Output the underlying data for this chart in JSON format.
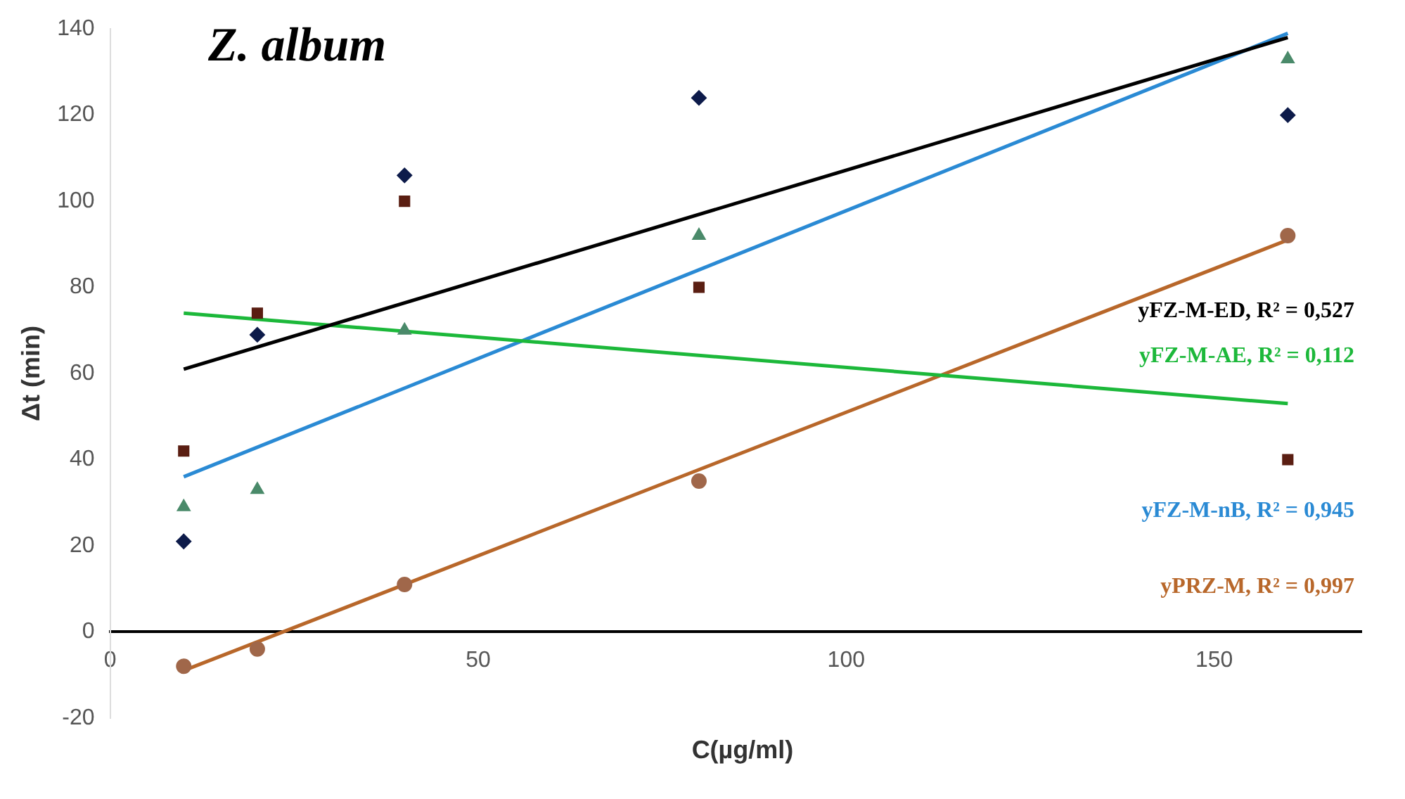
{
  "chart_data": {
    "type": "scatter",
    "title": "Z. album",
    "xlabel": "C(µg/ml)",
    "ylabel": "Δt (min)",
    "xlim": [
      0,
      170
    ],
    "xticks": [
      0,
      50,
      100,
      150
    ],
    "ylim": [
      -20,
      140
    ],
    "yticks": [
      -20,
      0,
      20,
      40,
      60,
      80,
      100,
      120,
      140
    ],
    "grid": false,
    "legend": false,
    "series": [
      {
        "marker": "diamond",
        "color": "#0d1b4a",
        "x": [
          10,
          20,
          40,
          80,
          160
        ],
        "values": [
          21,
          69,
          106,
          124,
          120
        ]
      },
      {
        "marker": "square",
        "color": "#5a1e12",
        "x": [
          10,
          20,
          40,
          80,
          160
        ],
        "values": [
          42,
          74,
          100,
          80,
          40
        ]
      },
      {
        "marker": "triangle",
        "color": "#4a8a6a",
        "x": [
          10,
          20,
          40,
          80,
          160
        ],
        "values": [
          29,
          33,
          70,
          92,
          133
        ]
      },
      {
        "marker": "circle",
        "color": "#a0674a",
        "x": [
          10,
          20,
          40,
          80,
          160
        ],
        "values": [
          -8,
          -4,
          11,
          35,
          92
        ]
      },
      {
        "type": "line",
        "name": "yFZ-M-ED, R² = 0,527",
        "color": "#000000",
        "x": [
          10,
          160
        ],
        "values": [
          61,
          138
        ]
      },
      {
        "type": "line",
        "name": "yFZ-M-AE, R² = 0,112",
        "color": "#1cb83a",
        "x": [
          10,
          160
        ],
        "values": [
          74,
          53
        ]
      },
      {
        "type": "line",
        "name": "yFZ-M-nB, R² = 0,945",
        "color": "#2a8ad4",
        "x": [
          10,
          160
        ],
        "values": [
          36,
          139
        ]
      },
      {
        "type": "line",
        "name": "yPRZ-M, R² = 0,997",
        "color": "#b8672a",
        "x": [
          10,
          160
        ],
        "values": [
          -9,
          91
        ]
      }
    ]
  }
}
